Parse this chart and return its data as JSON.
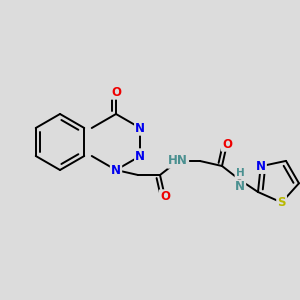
{
  "bg_color": "#dcdcdc",
  "atom_colors": {
    "C": "#000000",
    "N": "#0000ee",
    "O": "#ee0000",
    "S": "#b8b800",
    "H_bond": "#4a9090"
  },
  "bond_color": "#000000",
  "bond_width": 1.4,
  "font_size": 8.5
}
